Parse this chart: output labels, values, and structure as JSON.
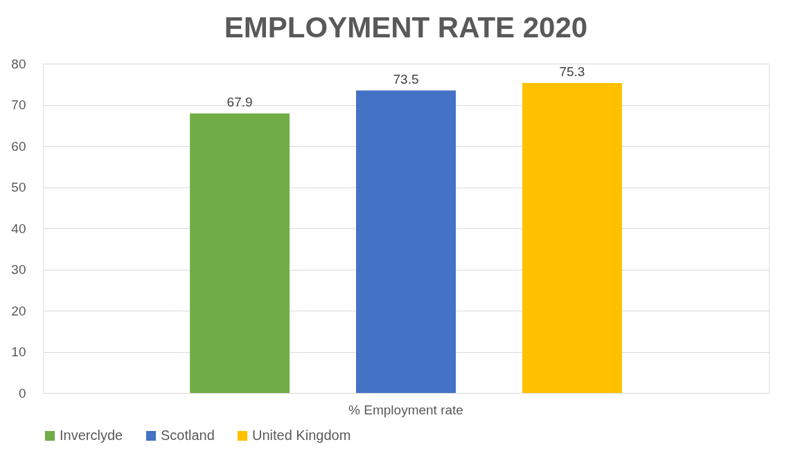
{
  "chart_data": {
    "type": "bar",
    "title": "EMPLOYMENT RATE 2020",
    "categories": [
      "% Employment rate"
    ],
    "series": [
      {
        "name": "Inverclyde",
        "color": "#70ad47",
        "values": [
          67.9
        ]
      },
      {
        "name": "Scotland",
        "color": "#4472c4",
        "values": [
          73.5
        ]
      },
      {
        "name": "United Kingdom",
        "color": "#ffc000",
        "values": [
          75.3
        ]
      }
    ],
    "ylim": [
      0,
      80
    ],
    "yticks": [
      0,
      10,
      20,
      30,
      40,
      50,
      60,
      70,
      80
    ],
    "grid": "y",
    "legend": "bottom",
    "data_labels": true
  }
}
